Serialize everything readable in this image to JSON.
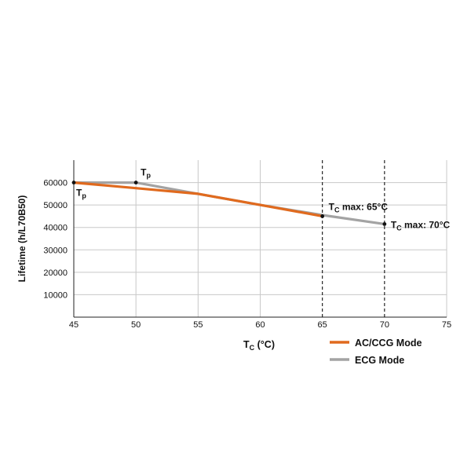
{
  "chart_data": {
    "type": "line",
    "xlabel": {
      "main": "T",
      "sub": "C",
      "rest": " (°C)"
    },
    "ylabel": "Lifetime (h/L70B50)",
    "xlim": [
      45,
      75
    ],
    "ylim": [
      0,
      70000
    ],
    "x_ticks": [
      45,
      50,
      55,
      60,
      65,
      70,
      75
    ],
    "y_ticks": [
      10000,
      20000,
      30000,
      40000,
      50000,
      60000
    ],
    "grid": true,
    "legend_position": "bottom-right",
    "series": [
      {
        "name": "AC/CCG Mode",
        "color": "#e06a1e",
        "x": [
          45,
          50,
          55,
          60,
          65
        ],
        "y": [
          60000,
          57500,
          55000,
          50000,
          45000
        ]
      },
      {
        "name": "ECG Mode",
        "color": "#a3a3a3",
        "x": [
          45,
          50,
          55,
          60,
          65,
          70
        ],
        "y": [
          60000,
          60000,
          55000,
          50000,
          45500,
          41500
        ]
      }
    ],
    "vlines": [
      65,
      70
    ],
    "points": [
      {
        "x": 45,
        "y": 60000,
        "label_main": "T",
        "label_sub": "p",
        "label_rest": ""
      },
      {
        "x": 50,
        "y": 60000,
        "label_main": "T",
        "label_sub": "p",
        "label_rest": ""
      },
      {
        "x": 65,
        "y": 45000,
        "label_main": "T",
        "label_sub": "C",
        "label_rest": " max: 65°C"
      },
      {
        "x": 70,
        "y": 41500,
        "label_main": "T",
        "label_sub": "C",
        "label_rest": " max: 70°C"
      }
    ]
  }
}
